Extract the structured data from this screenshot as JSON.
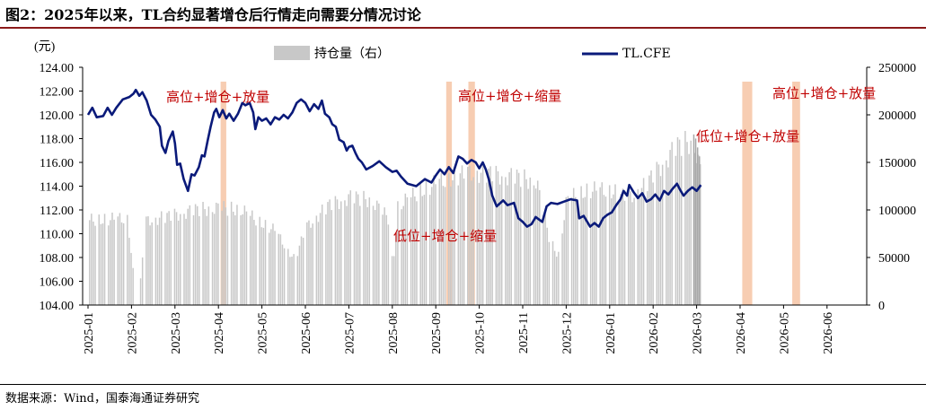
{
  "figure": {
    "title": "图2：2025年以来，TL合约显著增仓后行情走向需要分情况讨论",
    "source": "数据来源：Wind，国泰海通证券研究",
    "colors": {
      "title_rule": "#8b1a1a",
      "line": "#0a1a7a",
      "bar": "#c8c8c8",
      "highlight": "#f7cdb2",
      "annotation": "#c00000"
    }
  },
  "chart_data": {
    "type": "combo",
    "left_axis": {
      "unit_label": "(元)",
      "ylim": [
        104,
        124
      ],
      "ticks": [
        "104.00",
        "106.00",
        "108.00",
        "110.00",
        "112.00",
        "114.00",
        "116.00",
        "118.00",
        "120.00",
        "122.00",
        "124.00"
      ]
    },
    "right_axis": {
      "ylim": [
        0,
        250000
      ],
      "ticks": [
        "0",
        "50000",
        "100000",
        "150000",
        "200000",
        "250000"
      ]
    },
    "x_axis": {
      "labels": [
        "2025-01",
        "2025-02",
        "2025-03",
        "2025-04",
        "2025-05",
        "2025-06",
        "2025-07",
        "2025-08",
        "2025-09",
        "2025-10",
        "2025-11",
        "2025-12",
        "2026-01",
        "2026-02",
        "2026-03",
        "2026-04",
        "2026-05",
        "2026-06"
      ]
    },
    "legend": [
      {
        "name": "持仓量（右）",
        "kind": "bar"
      },
      {
        "name": "TL.CFE",
        "kind": "line"
      }
    ],
    "legend_position": "top",
    "line_series": {
      "name": "TL.CFE",
      "points": [
        [
          0.0,
          120.0
        ],
        [
          0.1,
          120.6
        ],
        [
          0.2,
          119.8
        ],
        [
          0.35,
          119.9
        ],
        [
          0.45,
          120.6
        ],
        [
          0.55,
          120.0
        ],
        [
          0.65,
          120.6
        ],
        [
          0.8,
          121.3
        ],
        [
          0.95,
          121.5
        ],
        [
          1.05,
          121.8
        ],
        [
          1.1,
          122.1
        ],
        [
          1.18,
          121.6
        ],
        [
          1.25,
          121.9
        ],
        [
          1.35,
          121.2
        ],
        [
          1.45,
          120.0
        ],
        [
          1.55,
          119.6
        ],
        [
          1.65,
          119.0
        ],
        [
          1.7,
          117.4
        ],
        [
          1.78,
          116.8
        ],
        [
          1.85,
          117.8
        ],
        [
          1.95,
          118.6
        ],
        [
          2.0,
          117.6
        ],
        [
          2.05,
          115.8
        ],
        [
          2.12,
          115.9
        ],
        [
          2.2,
          114.6
        ],
        [
          2.3,
          113.6
        ],
        [
          2.38,
          115.0
        ],
        [
          2.45,
          114.9
        ],
        [
          2.55,
          115.6
        ],
        [
          2.62,
          116.6
        ],
        [
          2.68,
          116.5
        ],
        [
          2.75,
          117.8
        ],
        [
          2.82,
          119.0
        ],
        [
          2.9,
          120.2
        ],
        [
          2.95,
          120.5
        ],
        [
          3.02,
          119.8
        ],
        [
          3.1,
          120.4
        ],
        [
          3.18,
          119.7
        ],
        [
          3.25,
          120.1
        ],
        [
          3.35,
          119.5
        ],
        [
          3.45,
          120.1
        ],
        [
          3.55,
          121.0
        ],
        [
          3.62,
          120.8
        ],
        [
          3.72,
          121.0
        ],
        [
          3.8,
          120.2
        ],
        [
          3.85,
          118.8
        ],
        [
          3.92,
          119.8
        ],
        [
          4.0,
          119.5
        ],
        [
          4.1,
          119.7
        ],
        [
          4.2,
          119.2
        ],
        [
          4.3,
          119.8
        ],
        [
          4.4,
          119.6
        ],
        [
          4.5,
          120.0
        ],
        [
          4.6,
          119.7
        ],
        [
          4.7,
          120.2
        ],
        [
          4.8,
          121.0
        ],
        [
          4.9,
          121.3
        ],
        [
          5.0,
          121.0
        ],
        [
          5.1,
          120.3
        ],
        [
          5.2,
          120.9
        ],
        [
          5.3,
          120.5
        ],
        [
          5.38,
          121.2
        ],
        [
          5.45,
          120.1
        ],
        [
          5.55,
          119.8
        ],
        [
          5.62,
          119.2
        ],
        [
          5.7,
          119.0
        ],
        [
          5.78,
          117.9
        ],
        [
          5.88,
          117.7
        ],
        [
          5.95,
          117.0
        ],
        [
          6.0,
          117.3
        ],
        [
          6.08,
          117.4
        ],
        [
          6.15,
          116.8
        ],
        [
          6.22,
          116.3
        ],
        [
          6.3,
          116.0
        ],
        [
          6.4,
          115.4
        ],
        [
          6.55,
          115.7
        ],
        [
          6.7,
          116.1
        ],
        [
          6.85,
          115.6
        ],
        [
          7.0,
          115.2
        ],
        [
          7.1,
          115.3
        ],
        [
          7.2,
          114.8
        ],
        [
          7.35,
          114.2
        ],
        [
          7.55,
          114.0
        ],
        [
          7.75,
          114.6
        ],
        [
          7.9,
          114.3
        ],
        [
          8.0,
          114.9
        ],
        [
          8.1,
          115.4
        ],
        [
          8.2,
          115.0
        ],
        [
          8.3,
          115.6
        ],
        [
          8.4,
          115.1
        ],
        [
          8.52,
          116.5
        ],
        [
          8.62,
          116.3
        ],
        [
          8.72,
          115.9
        ],
        [
          8.82,
          116.2
        ],
        [
          8.92,
          116.0
        ],
        [
          9.0,
          115.5
        ],
        [
          9.08,
          116.0
        ],
        [
          9.15,
          115.4
        ],
        [
          9.22,
          114.6
        ],
        [
          9.3,
          113.2
        ],
        [
          9.4,
          112.3
        ],
        [
          9.55,
          112.8
        ],
        [
          9.65,
          112.4
        ],
        [
          9.8,
          112.6
        ],
        [
          9.9,
          111.3
        ],
        [
          10.0,
          111.0
        ],
        [
          10.1,
          110.6
        ],
        [
          10.2,
          110.8
        ],
        [
          10.3,
          111.4
        ],
        [
          10.45,
          111.0
        ],
        [
          10.55,
          112.3
        ],
        [
          10.65,
          112.6
        ],
        [
          10.8,
          112.5
        ],
        [
          10.95,
          112.7
        ],
        [
          11.1,
          112.9
        ],
        [
          11.25,
          112.8
        ],
        [
          11.3,
          111.3
        ],
        [
          11.4,
          111.5
        ],
        [
          11.55,
          110.6
        ],
        [
          11.65,
          110.9
        ],
        [
          11.75,
          110.6
        ],
        [
          11.85,
          111.3
        ],
        [
          11.95,
          111.6
        ],
        [
          12.05,
          111.8
        ],
        [
          12.15,
          112.4
        ],
        [
          12.25,
          112.9
        ],
        [
          12.32,
          113.6
        ],
        [
          12.4,
          113.2
        ],
        [
          12.45,
          114.1
        ],
        [
          12.55,
          113.5
        ],
        [
          12.65,
          113.0
        ],
        [
          12.75,
          113.4
        ],
        [
          12.85,
          112.7
        ],
        [
          12.95,
          112.9
        ],
        [
          13.05,
          113.3
        ],
        [
          13.15,
          112.8
        ],
        [
          13.25,
          113.6
        ],
        [
          13.35,
          113.3
        ],
        [
          13.45,
          113.8
        ],
        [
          13.55,
          114.2
        ],
        [
          13.62,
          113.7
        ],
        [
          13.7,
          113.2
        ],
        [
          13.8,
          113.6
        ],
        [
          13.9,
          113.9
        ],
        [
          14.0,
          113.6
        ],
        [
          14.1,
          114.1
        ]
      ]
    },
    "bar_series": {
      "name": "持仓量（右）"
    },
    "highlights": [
      {
        "from": 3.05,
        "to": 3.18
      },
      {
        "from": 8.24,
        "to": 8.37
      },
      {
        "from": 8.75,
        "to": 8.9
      },
      {
        "from": 15.05,
        "to": 15.28
      },
      {
        "from": 16.2,
        "to": 16.38
      }
    ],
    "annotations": [
      {
        "text": "高位+增仓+放量"
      },
      {
        "text": "高位+增仓+缩量"
      },
      {
        "text": "低位+增仓+缩量"
      },
      {
        "text": "低位+增仓+放量"
      },
      {
        "text": "高位+增仓+放量"
      }
    ]
  }
}
